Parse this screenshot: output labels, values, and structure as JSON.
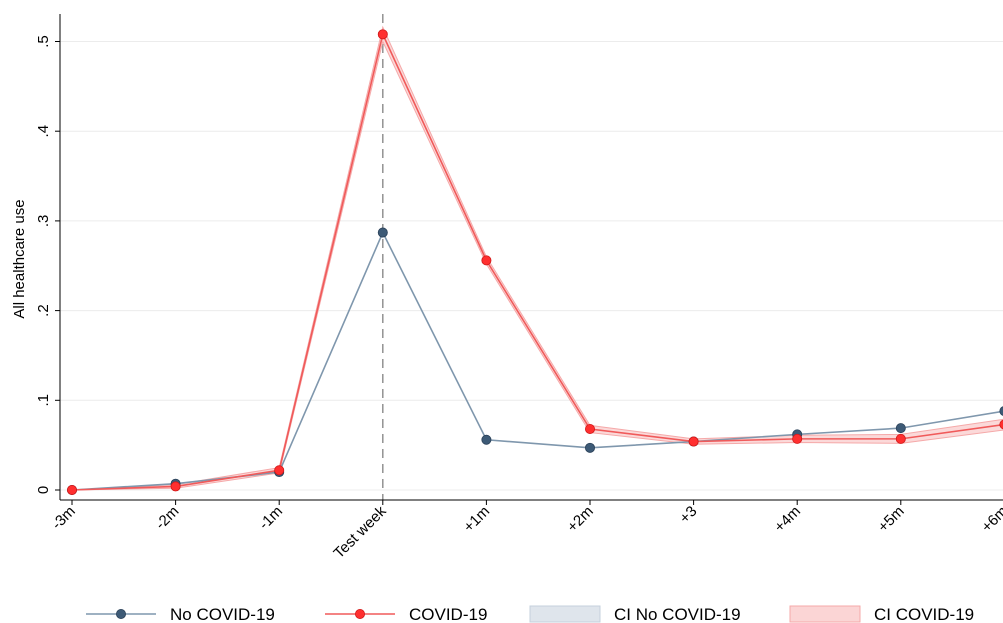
{
  "chart_data": {
    "type": "line",
    "title": "",
    "xlabel": "",
    "ylabel": "All healthcare use",
    "categories": [
      "-3m",
      "-2m",
      "-1m",
      "Test week",
      "+1m",
      "+2m",
      "+3",
      "+4m",
      "+5m",
      "+6m"
    ],
    "ylim": [
      0,
      0.5
    ],
    "y_ticks": [
      0,
      0.1,
      0.2,
      0.3,
      0.4,
      0.5
    ],
    "y_tick_labels": [
      "0",
      ".1",
      ".2",
      ".3",
      ".4",
      ".5"
    ],
    "grid": true,
    "reference_line": {
      "category": "Test week",
      "style": "dashed"
    },
    "legend_placement": "bottom",
    "series": [
      {
        "name": "No COVID-19",
        "values": [
          0.0,
          0.007,
          0.02,
          0.287,
          0.056,
          0.047,
          0.054,
          0.062,
          0.069,
          0.088
        ],
        "line_color": "#7f97ad",
        "marker_color": "#3d5a76"
      },
      {
        "name": "COVID-19",
        "values": [
          0.0,
          0.004,
          0.022,
          0.508,
          0.256,
          0.068,
          0.054,
          0.057,
          0.057,
          0.073
        ],
        "ci_lower": [
          0.0,
          0.002,
          0.019,
          0.5,
          0.252,
          0.064,
          0.051,
          0.053,
          0.052,
          0.067
        ],
        "ci_upper": [
          0.0,
          0.006,
          0.025,
          0.516,
          0.26,
          0.072,
          0.057,
          0.061,
          0.062,
          0.079
        ],
        "line_color": "#f05a5a",
        "marker_color": "#ff2f2f"
      }
    ],
    "legend": [
      {
        "label": "No COVID-19",
        "kind": "line-marker",
        "line_color": "#7f97ad",
        "marker_color": "#3d5a76"
      },
      {
        "label": "COVID-19",
        "kind": "line-marker",
        "line_color": "#f05a5a",
        "marker_color": "#ff2f2f"
      },
      {
        "label": "CI No COVID-19",
        "kind": "band",
        "fill": "#dfe5ec",
        "stroke": "#c5d0dc"
      },
      {
        "label": "CI COVID-19",
        "kind": "band",
        "fill": "#fbd5d5",
        "stroke": "#f5a9a9"
      }
    ]
  }
}
